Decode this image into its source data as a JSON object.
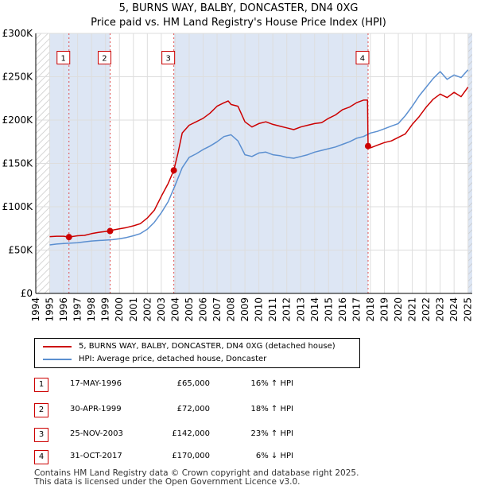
{
  "chart_data": {
    "type": "line",
    "title": "5, BURNS WAY, BALBY, DONCASTER, DN4 0XG",
    "subtitle": "Price paid vs. HM Land Registry's House Price Index (HPI)",
    "xlabel": "",
    "ylabel": "",
    "xlim": [
      1994,
      2025.3
    ],
    "ylim": [
      0,
      300000
    ],
    "x_ticks": [
      "1994",
      "1995",
      "1996",
      "1997",
      "1998",
      "1999",
      "2000",
      "2001",
      "2002",
      "2003",
      "2004",
      "2005",
      "2006",
      "2007",
      "2008",
      "2009",
      "2010",
      "2011",
      "2012",
      "2013",
      "2014",
      "2015",
      "2016",
      "2017",
      "2018",
      "2019",
      "2020",
      "2021",
      "2022",
      "2023",
      "2024",
      "2025"
    ],
    "y_ticks": [
      {
        "value": 0,
        "label": "£0"
      },
      {
        "value": 50000,
        "label": "£50K"
      },
      {
        "value": 100000,
        "label": "£100K"
      },
      {
        "value": 150000,
        "label": "£150K"
      },
      {
        "value": 200000,
        "label": "£200K"
      },
      {
        "value": 250000,
        "label": "£250K"
      },
      {
        "value": 300000,
        "label": "£300K"
      }
    ],
    "grid": true,
    "colors": {
      "property": "#cc0000",
      "hpi": "#5b8fd0",
      "shade": "#dde6f4",
      "grid": "#dddddd"
    },
    "series": [
      {
        "name": "5, BURNS WAY, BALBY, DONCASTER, DN4 0XG (detached house)",
        "x": [
          1995.0,
          1995.5,
          1996.0,
          1996.38,
          1997.0,
          1997.5,
          1998.0,
          1998.5,
          1999.0,
          1999.33,
          1999.5,
          2000.0,
          2000.5,
          2001.0,
          2001.5,
          2002.0,
          2002.5,
          2003.0,
          2003.5,
          2003.9,
          2004.2,
          2004.5,
          2005.0,
          2005.5,
          2006.0,
          2006.5,
          2007.0,
          2007.5,
          2007.8,
          2008.0,
          2008.5,
          2009.0,
          2009.5,
          2010.0,
          2010.5,
          2011.0,
          2011.5,
          2012.0,
          2012.5,
          2013.0,
          2013.5,
          2014.0,
          2014.5,
          2015.0,
          2015.5,
          2016.0,
          2016.5,
          2017.0,
          2017.5,
          2017.79,
          2017.83,
          2018.0,
          2018.5,
          2019.0,
          2019.5,
          2020.0,
          2020.5,
          2021.0,
          2021.5,
          2022.0,
          2022.5,
          2023.0,
          2023.5,
          2024.0,
          2024.5,
          2025.0
        ],
        "values": [
          65500,
          66000,
          66000,
          65000,
          66500,
          67000,
          69000,
          70500,
          71500,
          72000,
          73000,
          74500,
          76000,
          78000,
          80500,
          87000,
          96000,
          112000,
          127000,
          142000,
          162000,
          185000,
          194000,
          198000,
          202000,
          208000,
          216000,
          220000,
          222000,
          218000,
          216000,
          198000,
          192000,
          196000,
          198000,
          195000,
          193000,
          191000,
          189000,
          192000,
          194000,
          196000,
          197000,
          202000,
          206000,
          212000,
          215000,
          220000,
          223000,
          223000,
          170000,
          168000,
          171000,
          174000,
          176000,
          180000,
          184000,
          195000,
          204000,
          215000,
          224000,
          230000,
          226000,
          232000,
          227000,
          238000
        ]
      },
      {
        "name": "HPI: Average price, detached house, Doncaster",
        "x": [
          1995.0,
          1995.5,
          1996.0,
          1996.5,
          1997.0,
          1997.5,
          1998.0,
          1998.5,
          1999.0,
          1999.5,
          2000.0,
          2000.5,
          2001.0,
          2001.5,
          2002.0,
          2002.5,
          2003.0,
          2003.5,
          2004.0,
          2004.5,
          2005.0,
          2005.5,
          2006.0,
          2006.5,
          2007.0,
          2007.5,
          2008.0,
          2008.5,
          2009.0,
          2009.5,
          2010.0,
          2010.5,
          2011.0,
          2011.5,
          2012.0,
          2012.5,
          2013.0,
          2013.5,
          2014.0,
          2014.5,
          2015.0,
          2015.5,
          2016.0,
          2016.5,
          2017.0,
          2017.5,
          2018.0,
          2018.5,
          2019.0,
          2019.5,
          2020.0,
          2020.5,
          2021.0,
          2021.5,
          2022.0,
          2022.5,
          2023.0,
          2023.5,
          2024.0,
          2024.5,
          2025.0
        ],
        "values": [
          56000,
          57000,
          57500,
          58000,
          58500,
          59500,
          60500,
          61000,
          61500,
          62000,
          63000,
          64500,
          66500,
          69000,
          74000,
          82000,
          93000,
          106000,
          125000,
          145000,
          157000,
          161000,
          166000,
          170000,
          175000,
          181000,
          183000,
          176000,
          160000,
          158000,
          162000,
          163000,
          160000,
          159000,
          157000,
          156000,
          158000,
          160000,
          163000,
          165000,
          167000,
          169000,
          172000,
          175000,
          179000,
          181000,
          185000,
          187000,
          190000,
          193000,
          196000,
          205000,
          216000,
          228000,
          238000,
          248000,
          256000,
          247000,
          252000,
          249000,
          258000
        ]
      }
    ],
    "sales": [
      {
        "num": "1",
        "date": "17-MAY-1996",
        "x": 1996.38,
        "value": 65000,
        "price": "£65,000",
        "hpi": "16% ↑ HPI"
      },
      {
        "num": "2",
        "date": "30-APR-1999",
        "x": 1999.33,
        "value": 72000,
        "price": "£72,000",
        "hpi": "18% ↑ HPI"
      },
      {
        "num": "3",
        "date": "25-NOV-2003",
        "x": 2003.9,
        "value": 142000,
        "price": "£142,000",
        "hpi": "23% ↑ HPI"
      },
      {
        "num": "4",
        "date": "31-OCT-2017",
        "x": 2017.83,
        "value": 170000,
        "price": "£170,000",
        "hpi": "6% ↓ HPI"
      }
    ],
    "marker_label_value": 272000,
    "shaded_ranges": [
      [
        1995,
        1996.38
      ],
      [
        1996.38,
        1999.33
      ],
      [
        2003.9,
        2017.83
      ],
      [
        2025.0,
        2025.3
      ]
    ],
    "hatched_ranges": [
      [
        1994,
        1995
      ],
      [
        2025.0,
        2025.3
      ]
    ]
  },
  "legend": {
    "property_label": "5, BURNS WAY, BALBY, DONCASTER, DN4 0XG (detached house)",
    "hpi_label": "HPI: Average price, detached house, Doncaster"
  },
  "footer": {
    "line1": "Contains HM Land Registry data © Crown copyright and database right 2025.",
    "line2": "This data is licensed under the Open Government Licence v3.0."
  }
}
